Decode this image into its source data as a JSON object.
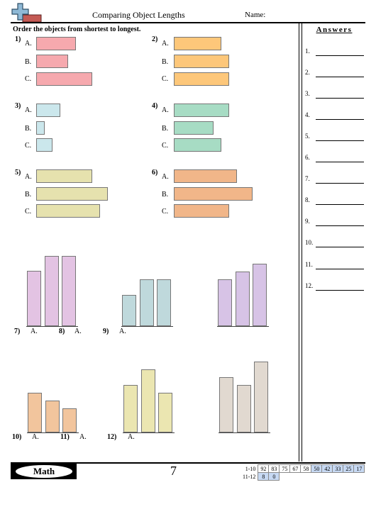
{
  "header": {
    "title": "Comparing Object Lengths",
    "name_label": "Name:"
  },
  "instructions": "Order the objects from shortest to longest.",
  "answers": {
    "title": "Answers",
    "items": [
      "1.",
      "2.",
      "3.",
      "4.",
      "5.",
      "6.",
      "7.",
      "8.",
      "9.",
      "10.",
      "11.",
      "12."
    ]
  },
  "problems": {
    "p1": {
      "num": "1)",
      "labels": [
        "A.",
        "B.",
        "C."
      ]
    },
    "p2": {
      "num": "2)",
      "labels": [
        "A.",
        "B.",
        "C."
      ]
    },
    "p3": {
      "num": "3)",
      "labels": [
        "A.",
        "B.",
        "C."
      ]
    },
    "p4": {
      "num": "4)",
      "labels": [
        "A.",
        "B.",
        "C."
      ]
    },
    "p5": {
      "num": "5)",
      "labels": [
        "A.",
        "B.",
        "C."
      ]
    },
    "p6": {
      "num": "6)",
      "labels": [
        "A.",
        "B.",
        "C."
      ]
    },
    "p7": {
      "num": "7)",
      "label": "A."
    },
    "p8": {
      "num": "8)",
      "label": "A."
    },
    "p9": {
      "num": "9)",
      "label": "A."
    },
    "p10": {
      "num": "10)",
      "label": "A."
    },
    "p11": {
      "num": "11)",
      "label": "A."
    },
    "p12": {
      "num": "12)",
      "label": "A."
    }
  },
  "colors": {
    "pink": "#f6a9ae",
    "orange": "#fdc77a",
    "lightblue": "#cbe7ec",
    "green": "#a7dcc4",
    "khaki": "#e6e2ae",
    "salmon": "#f1b689",
    "lavender": "#e3c3e3",
    "teal": "#bfd9dc",
    "purple": "#d7c3e6",
    "peach": "#f2c59d",
    "yellow": "#ebe6b1",
    "taupe": "#e1d9d0"
  },
  "footer": {
    "subject": "Math",
    "page_number": "7",
    "score_rows": [
      {
        "range": "1-10",
        "scores": [
          "92",
          "83",
          "75",
          "67",
          "58",
          "50",
          "42",
          "33",
          "25",
          "17"
        ]
      },
      {
        "range": "11-12",
        "scores": [
          "8",
          "0"
        ]
      }
    ]
  }
}
